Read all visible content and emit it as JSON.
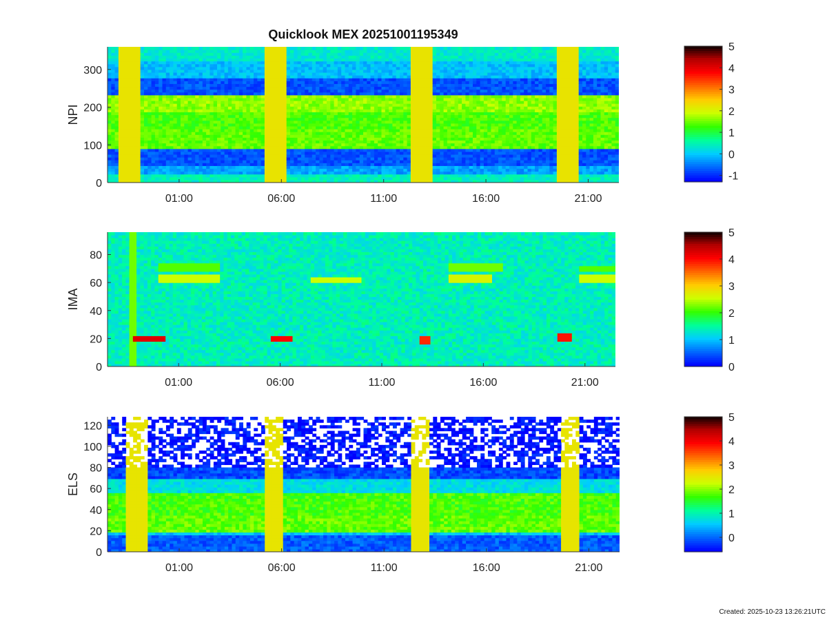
{
  "title": "Quicklook MEX 20251001195349",
  "footer": "Created: 2025-10-23 13:26:21UTC",
  "colorscale": [
    "#0000ff",
    "#0066ff",
    "#00ccff",
    "#00ff99",
    "#33ff00",
    "#ccff00",
    "#ffcc00",
    "#ff6600",
    "#ff0000",
    "#b00000",
    "#000000"
  ],
  "chart_data": [
    {
      "type": "heatmap",
      "ylabel": "NPI",
      "ylim": [
        0,
        360
      ],
      "yticks": [
        0,
        100,
        200,
        300
      ],
      "xlim": [
        -2.5,
        22.5
      ],
      "xticks": [
        1,
        6,
        11,
        16,
        21
      ],
      "xticklabels": [
        "01:00",
        "06:00",
        "11:00",
        "16:00",
        "21:00"
      ],
      "clim": [
        -1.3,
        5
      ],
      "cticks": [
        -1,
        0,
        1,
        2,
        3,
        4,
        5
      ],
      "bands": [
        {
          "y": [
            0,
            20
          ],
          "value": 0.4
        },
        {
          "y": [
            20,
            45
          ],
          "value": -0.3
        },
        {
          "y": [
            45,
            90
          ],
          "value": -0.8
        },
        {
          "y": [
            90,
            140
          ],
          "value": 1.4
        },
        {
          "y": [
            140,
            185
          ],
          "value": 1.3
        },
        {
          "y": [
            185,
            235
          ],
          "value": 1.6
        },
        {
          "y": [
            235,
            280
          ],
          "value": -0.8
        },
        {
          "y": [
            280,
            320
          ],
          "value": -0.1
        },
        {
          "y": [
            320,
            360
          ],
          "value": 0.3
        }
      ],
      "events": [
        -1.5,
        5.6,
        12.8,
        19.9
      ]
    },
    {
      "type": "heatmap",
      "ylabel": "IMA",
      "ylim": [
        0,
        96
      ],
      "yticks": [
        0,
        20,
        40,
        60,
        80
      ],
      "xlim": [
        -2.5,
        22.5
      ],
      "xticks": [
        1,
        6,
        11,
        16,
        21
      ],
      "xticklabels": [
        "01:00",
        "06:00",
        "11:00",
        "16:00",
        "21:00"
      ],
      "clim": [
        0,
        5
      ],
      "cticks": [
        0,
        1,
        2,
        3,
        4,
        5
      ],
      "background": 1.35,
      "lines": [
        {
          "x": [
            0,
            3
          ],
          "y": 63,
          "value": 2.5
        },
        {
          "x": [
            0,
            3
          ],
          "y": 71,
          "value": 2.1
        },
        {
          "x": [
            7.5,
            10
          ],
          "y": 62,
          "value": 2.5
        },
        {
          "x": [
            14.2,
            16.5
          ],
          "y": 63,
          "value": 2.6
        },
        {
          "x": [
            14.2,
            17
          ],
          "y": 71,
          "value": 2.2
        },
        {
          "x": [
            20.8,
            22.5
          ],
          "y": 63,
          "value": 2.5
        },
        {
          "x": [
            20.8,
            22.5
          ],
          "y": 70,
          "value": 2.1
        }
      ],
      "spots": [
        {
          "x": [
            -1.2,
            0.3
          ],
          "y": 20,
          "value": 4.2
        },
        {
          "x": [
            5.6,
            6.6
          ],
          "y": 20,
          "value": 4.0
        },
        {
          "x": [
            12.8,
            13.4
          ],
          "y": 19,
          "value": 3.8
        },
        {
          "x": [
            19.7,
            20.3
          ],
          "y": 21,
          "value": 3.9
        }
      ],
      "stripes": [
        {
          "x": [
            -1.5,
            -1.0
          ],
          "value": 2.2
        }
      ]
    },
    {
      "type": "heatmap",
      "ylabel": "ELS",
      "ylim": [
        0,
        128
      ],
      "yticks": [
        0,
        20,
        40,
        60,
        80,
        100,
        120
      ],
      "xlim": [
        -2.5,
        22.5
      ],
      "xticks": [
        1,
        6,
        11,
        16,
        21
      ],
      "xticklabels": [
        "01:00",
        "06:00",
        "11:00",
        "16:00",
        "21:00"
      ],
      "clim": [
        -0.6,
        5
      ],
      "cticks": [
        0,
        1,
        2,
        3,
        4,
        5
      ],
      "bands": [
        {
          "y": [
            0,
            15
          ],
          "value": -0.1
        },
        {
          "y": [
            15,
            20
          ],
          "value": 0.5
        },
        {
          "y": [
            20,
            35
          ],
          "value": 1.8
        },
        {
          "y": [
            35,
            55
          ],
          "value": 1.7
        },
        {
          "y": [
            55,
            70
          ],
          "value": 0.7
        },
        {
          "y": [
            70,
            80
          ],
          "value": -0.2
        },
        {
          "y": [
            80,
            128
          ],
          "value": -0.5
        }
      ],
      "events": [
        -1.2,
        5.5,
        12.7,
        20.0
      ]
    }
  ]
}
